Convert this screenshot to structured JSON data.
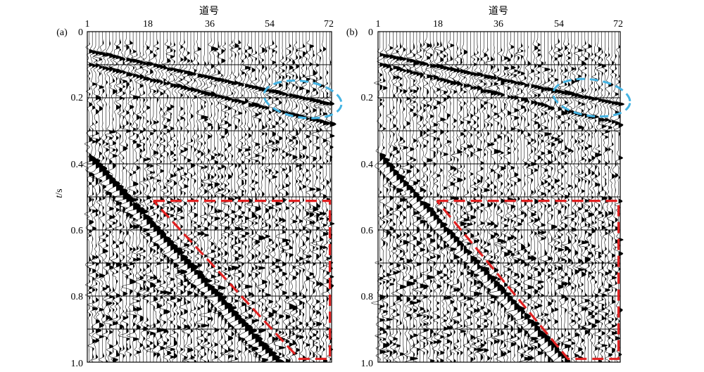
{
  "chart_data": [
    {
      "panel_label": "(a)",
      "type": "seismic-wiggle",
      "xlabel": "道号",
      "ylabel": "t/s",
      "x_ticks": [
        "1",
        "18",
        "36",
        "54",
        "72"
      ],
      "y_ticks": [
        "0",
        "0.2",
        "0.4",
        "0.6",
        "0.8",
        "1.0"
      ],
      "xlim": [
        1,
        72
      ],
      "ylim": [
        0,
        1.0
      ],
      "trace_count": 72,
      "grid_lines_t": [
        0.1,
        0.2,
        0.3,
        0.4,
        0.5,
        0.6,
        0.7,
        0.8,
        0.9
      ],
      "direct_arrival_t": [
        0.06,
        0.22
      ],
      "refraction_t": [
        0.1,
        0.28
      ],
      "surface_wave_t_start": 0.38,
      "surface_wave_slope": 0.0112,
      "ellipse_annotation": {
        "trace_center": 64,
        "t_center": 0.205,
        "color": "#44b4e4"
      },
      "polygon_annotation": {
        "color": "#e02020",
        "vertices": [
          [
            20,
            0.512
          ],
          [
            72,
            0.512
          ],
          [
            72,
            0.99
          ],
          [
            63,
            0.99
          ],
          [
            20,
            0.512
          ]
        ]
      }
    },
    {
      "panel_label": "(b)",
      "type": "seismic-wiggle",
      "xlabel": "道号",
      "ylabel": "",
      "x_ticks": [
        "1",
        "18",
        "36",
        "54",
        "72"
      ],
      "y_ticks": [
        "0",
        "0.2",
        "0.4",
        "0.6",
        "0.8",
        "1.0"
      ],
      "xlim": [
        1,
        72
      ],
      "ylim": [
        0,
        1.0
      ],
      "trace_count": 72,
      "grid_lines_t": [
        0.1,
        0.2,
        0.3,
        0.4,
        0.5,
        0.6,
        0.7,
        0.8,
        0.9
      ],
      "direct_arrival_t": [
        0.07,
        0.22
      ],
      "refraction_t": [
        0.1,
        0.28
      ],
      "surface_wave_t_start": 0.38,
      "surface_wave_slope": 0.0112,
      "ellipse_annotation": {
        "trace_center": 64,
        "t_center": 0.2,
        "color": "#44b4e4"
      },
      "polygon_annotation": {
        "color": "#e02020",
        "vertices": [
          [
            18,
            0.512
          ],
          [
            72,
            0.512
          ],
          [
            72,
            0.99
          ],
          [
            57,
            0.99
          ],
          [
            18,
            0.512
          ]
        ]
      }
    }
  ]
}
